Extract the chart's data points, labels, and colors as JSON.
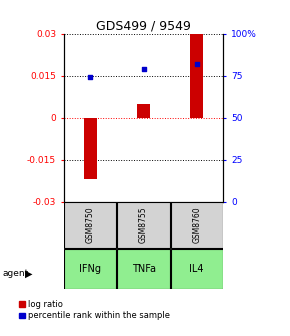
{
  "title": "GDS499 / 9549",
  "samples": [
    "GSM8750",
    "GSM8755",
    "GSM8760"
  ],
  "agents": [
    "IFNg",
    "TNFa",
    "IL4"
  ],
  "log_ratios": [
    -0.022,
    0.005,
    0.03
  ],
  "percentile_ranks": [
    74,
    79,
    82
  ],
  "ylim_left": [
    -0.03,
    0.03
  ],
  "ylim_right": [
    0,
    100
  ],
  "yticks_left": [
    -0.03,
    -0.015,
    0,
    0.015,
    0.03
  ],
  "yticks_right": [
    0,
    25,
    50,
    75,
    100
  ],
  "bar_color": "#cc0000",
  "dot_color": "#0000cc",
  "agent_bg_color": "#90ee90",
  "sample_bg_color": "#d3d3d3",
  "title_fontsize": 9,
  "tick_fontsize": 6.5,
  "legend_fontsize": 6
}
